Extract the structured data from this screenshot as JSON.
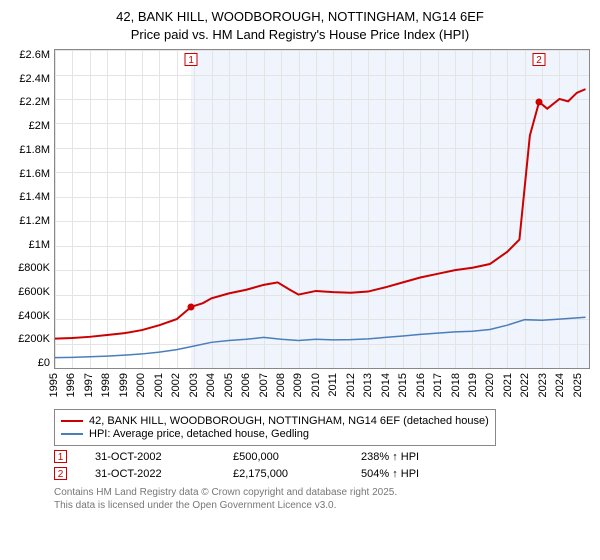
{
  "title": {
    "line1": "42, BANK HILL, WOODBOROUGH, NOTTINGHAM, NG14 6EF",
    "line2": "Price paid vs. HM Land Registry's House Price Index (HPI)"
  },
  "chart": {
    "type": "line",
    "background_color": "#ffffff",
    "grid_color": "#e4e4e4",
    "border_color": "#888888",
    "shade_color": "#f0f4fc",
    "x": {
      "min": 1995,
      "max": 2025.7,
      "ticks": [
        1995,
        1996,
        1997,
        1998,
        1999,
        2000,
        2001,
        2002,
        2003,
        2004,
        2005,
        2006,
        2007,
        2008,
        2009,
        2010,
        2011,
        2012,
        2013,
        2014,
        2015,
        2016,
        2017,
        2018,
        2019,
        2020,
        2021,
        2022,
        2023,
        2024,
        2025
      ],
      "label_fontsize": 11,
      "rotate": -90
    },
    "y": {
      "min": 0,
      "max": 2600000,
      "ticks": [
        0,
        200000,
        400000,
        600000,
        800000,
        1000000,
        1200000,
        1400000,
        1600000,
        1800000,
        2000000,
        2200000,
        2400000,
        2600000
      ],
      "tick_labels": [
        "£0",
        "£200K",
        "£400K",
        "£600K",
        "£800K",
        "£1M",
        "£1.2M",
        "£1.4M",
        "£1.6M",
        "£1.8M",
        "£2M",
        "£2.2M",
        "£2.4M",
        "£2.6M"
      ],
      "label_fontsize": 11
    },
    "shade_from_x": 2002.83,
    "series": [
      {
        "id": "property",
        "label": "42, BANK HILL, WOODBOROUGH, NOTTINGHAM, NG14 6EF (detached house)",
        "color": "#cc0000",
        "line_width": 2,
        "points": [
          [
            1995,
            240000
          ],
          [
            1996,
            245000
          ],
          [
            1997,
            255000
          ],
          [
            1998,
            270000
          ],
          [
            1999,
            285000
          ],
          [
            2000,
            310000
          ],
          [
            2001,
            350000
          ],
          [
            2002,
            400000
          ],
          [
            2002.83,
            500000
          ],
          [
            2003.5,
            530000
          ],
          [
            2004,
            570000
          ],
          [
            2005,
            610000
          ],
          [
            2006,
            640000
          ],
          [
            2007,
            680000
          ],
          [
            2007.8,
            700000
          ],
          [
            2008.5,
            640000
          ],
          [
            2009,
            600000
          ],
          [
            2010,
            630000
          ],
          [
            2011,
            620000
          ],
          [
            2012,
            615000
          ],
          [
            2013,
            625000
          ],
          [
            2014,
            660000
          ],
          [
            2015,
            700000
          ],
          [
            2016,
            740000
          ],
          [
            2017,
            770000
          ],
          [
            2018,
            800000
          ],
          [
            2019,
            820000
          ],
          [
            2020,
            850000
          ],
          [
            2021,
            950000
          ],
          [
            2021.7,
            1050000
          ],
          [
            2022.3,
            1900000
          ],
          [
            2022.83,
            2175000
          ],
          [
            2023.3,
            2120000
          ],
          [
            2024,
            2200000
          ],
          [
            2024.5,
            2180000
          ],
          [
            2025,
            2250000
          ],
          [
            2025.5,
            2280000
          ]
        ]
      },
      {
        "id": "hpi",
        "label": "HPI: Average price, detached house, Gedling",
        "color": "#4a7ebb",
        "line_width": 1.5,
        "points": [
          [
            1995,
            85000
          ],
          [
            1996,
            87000
          ],
          [
            1997,
            92000
          ],
          [
            1998,
            97000
          ],
          [
            1999,
            105000
          ],
          [
            2000,
            115000
          ],
          [
            2001,
            130000
          ],
          [
            2002,
            150000
          ],
          [
            2003,
            180000
          ],
          [
            2004,
            210000
          ],
          [
            2005,
            225000
          ],
          [
            2006,
            235000
          ],
          [
            2007,
            250000
          ],
          [
            2008,
            235000
          ],
          [
            2009,
            225000
          ],
          [
            2010,
            235000
          ],
          [
            2011,
            230000
          ],
          [
            2012,
            232000
          ],
          [
            2013,
            238000
          ],
          [
            2014,
            250000
          ],
          [
            2015,
            262000
          ],
          [
            2016,
            275000
          ],
          [
            2017,
            285000
          ],
          [
            2018,
            295000
          ],
          [
            2019,
            300000
          ],
          [
            2020,
            315000
          ],
          [
            2021,
            350000
          ],
          [
            2022,
            395000
          ],
          [
            2023,
            390000
          ],
          [
            2024,
            400000
          ],
          [
            2025,
            410000
          ],
          [
            2025.5,
            415000
          ]
        ]
      }
    ],
    "sale_markers": [
      {
        "n": "1",
        "x": 2002.83,
        "y": 500000,
        "color": "#cc0000"
      },
      {
        "n": "2",
        "x": 2022.83,
        "y": 2175000,
        "color": "#cc0000"
      }
    ]
  },
  "legend": {
    "border_color": "#888888",
    "items": [
      {
        "color": "#cc0000",
        "label": "42, BANK HILL, WOODBOROUGH, NOTTINGHAM, NG14 6EF (detached house)",
        "width": 2
      },
      {
        "color": "#4a7ebb",
        "label": "HPI: Average price, detached house, Gedling",
        "width": 1.5
      }
    ]
  },
  "sales": [
    {
      "n": "1",
      "color": "#cc0000",
      "date": "31-OCT-2002",
      "price": "£500,000",
      "change": "238% ↑ HPI"
    },
    {
      "n": "2",
      "color": "#cc0000",
      "date": "31-OCT-2022",
      "price": "£2,175,000",
      "change": "504% ↑ HPI"
    }
  ],
  "attribution": {
    "line1": "Contains HM Land Registry data © Crown copyright and database right 2025.",
    "line2": "This data is licensed under the Open Government Licence v3.0."
  }
}
